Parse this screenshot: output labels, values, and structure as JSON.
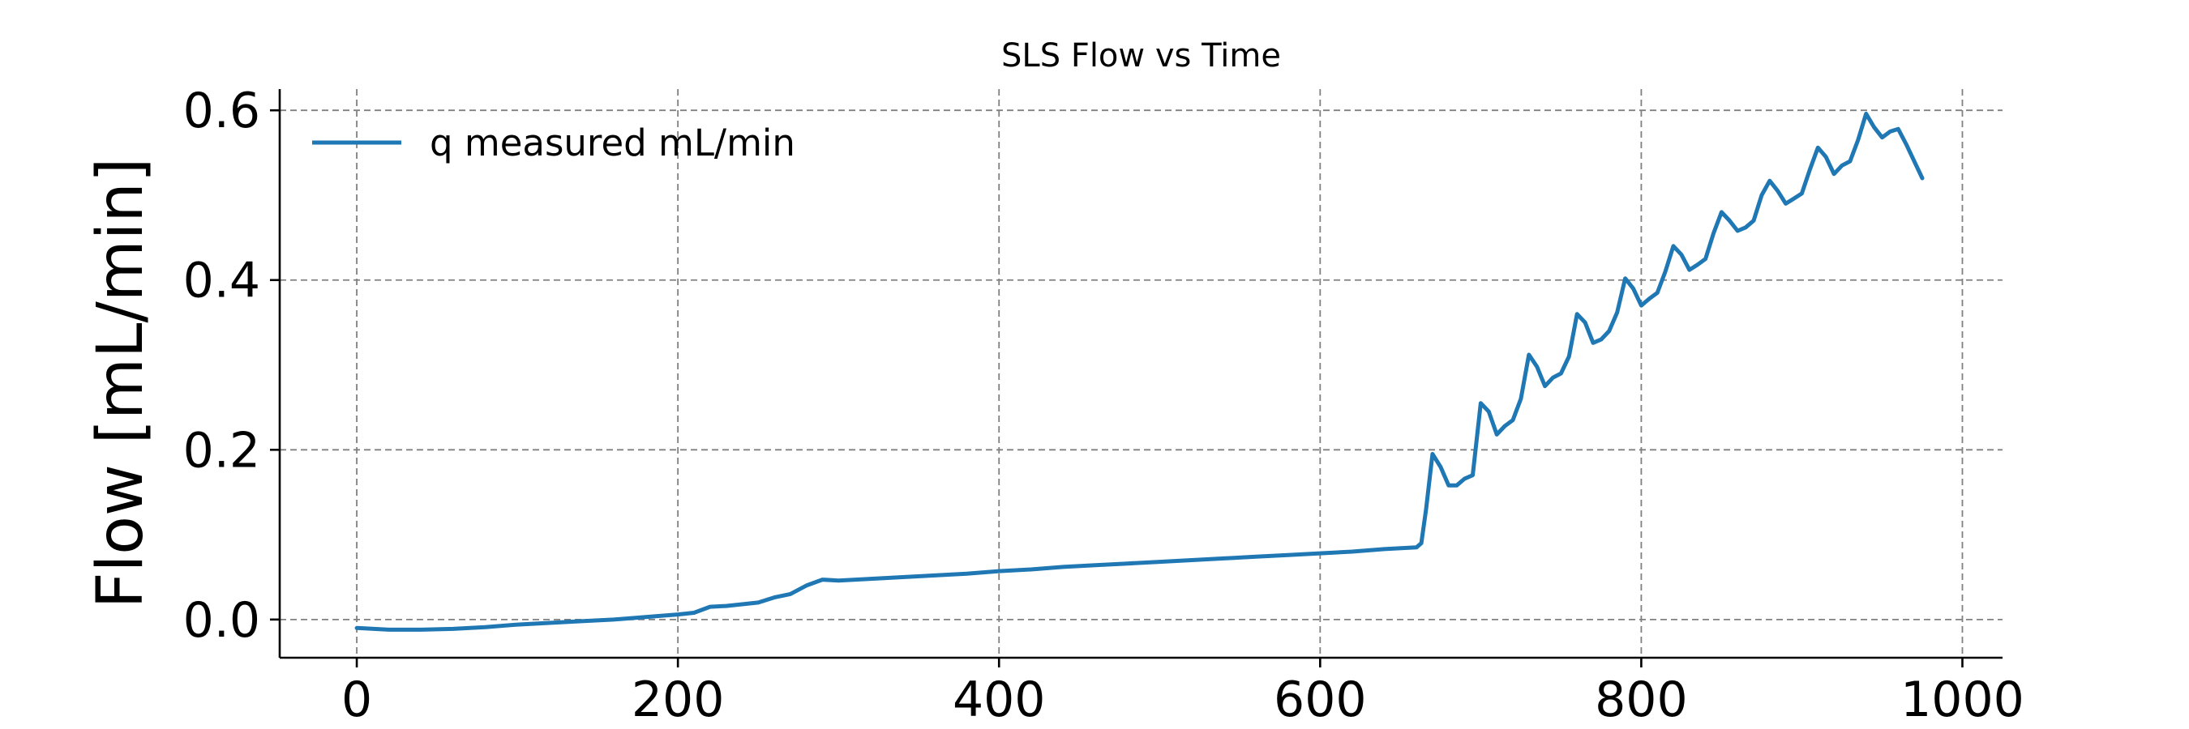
{
  "chart_data": {
    "type": "line",
    "title": "SLS Flow vs Time",
    "xlabel": "",
    "ylabel": "Flow [mL/min]",
    "xlim": [
      -48,
      1025
    ],
    "ylim": [
      -0.045,
      0.625
    ],
    "x_ticks": [
      0,
      200,
      400,
      600,
      800,
      1000
    ],
    "y_ticks": [
      0.0,
      0.2,
      0.4,
      0.6
    ],
    "grid": true,
    "legend": "top-left",
    "series": [
      {
        "name": "q measured mL/min",
        "color": "#1f77b4",
        "x": [
          0,
          20,
          40,
          60,
          80,
          100,
          120,
          140,
          160,
          180,
          200,
          210,
          220,
          230,
          240,
          250,
          260,
          270,
          280,
          290,
          300,
          320,
          340,
          360,
          380,
          400,
          420,
          440,
          460,
          480,
          500,
          520,
          540,
          560,
          580,
          600,
          620,
          640,
          660,
          663,
          666,
          670,
          675,
          680,
          685,
          690,
          695,
          700,
          705,
          710,
          715,
          720,
          725,
          730,
          735,
          740,
          745,
          750,
          755,
          760,
          765,
          770,
          775,
          780,
          785,
          790,
          795,
          800,
          805,
          810,
          815,
          820,
          825,
          830,
          835,
          840,
          845,
          850,
          855,
          860,
          865,
          870,
          875,
          880,
          885,
          890,
          895,
          900,
          905,
          910,
          915,
          920,
          925,
          930,
          935,
          940,
          945,
          950,
          955,
          960,
          965,
          970,
          975
        ],
        "y": [
          -0.01,
          -0.012,
          -0.012,
          -0.011,
          -0.009,
          -0.006,
          -0.004,
          -0.002,
          0.0,
          0.003,
          0.006,
          0.008,
          0.015,
          0.016,
          0.018,
          0.02,
          0.026,
          0.03,
          0.04,
          0.047,
          0.046,
          0.048,
          0.05,
          0.052,
          0.054,
          0.057,
          0.059,
          0.062,
          0.064,
          0.066,
          0.068,
          0.07,
          0.072,
          0.074,
          0.076,
          0.078,
          0.08,
          0.083,
          0.085,
          0.09,
          0.13,
          0.195,
          0.18,
          0.158,
          0.158,
          0.166,
          0.17,
          0.255,
          0.245,
          0.218,
          0.228,
          0.235,
          0.26,
          0.312,
          0.298,
          0.275,
          0.285,
          0.29,
          0.31,
          0.36,
          0.35,
          0.326,
          0.33,
          0.34,
          0.362,
          0.402,
          0.39,
          0.37,
          0.378,
          0.385,
          0.41,
          0.44,
          0.43,
          0.412,
          0.418,
          0.425,
          0.455,
          0.48,
          0.47,
          0.458,
          0.462,
          0.47,
          0.5,
          0.517,
          0.505,
          0.49,
          0.496,
          0.502,
          0.53,
          0.556,
          0.545,
          0.525,
          0.535,
          0.54,
          0.565,
          0.596,
          0.58,
          0.568,
          0.575,
          0.578,
          0.56,
          0.54,
          0.52
        ]
      }
    ]
  }
}
